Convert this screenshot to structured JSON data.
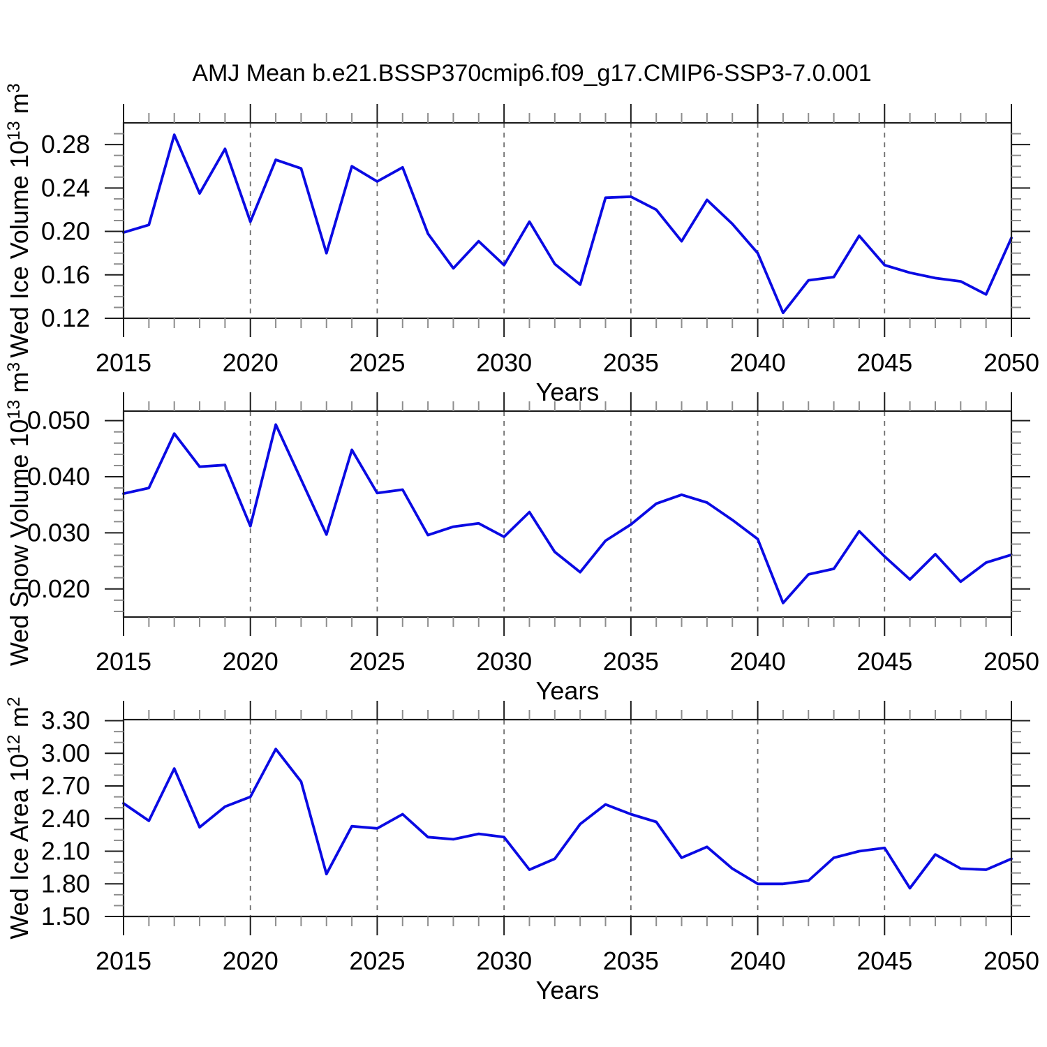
{
  "title": "AMJ Mean b.e21.BSSP370cmip6.f09_g17.CMIP6-SSP3-7.0.001",
  "colors": {
    "line": "#0a0ae3",
    "frame": "#1c1c1c",
    "major_tick": "#1c1c1c",
    "minor_tick": "#8d8d8d",
    "grid": "#6e6e6e",
    "text": "#000000",
    "background": "#ffffff"
  },
  "x_axis": {
    "label": "Years",
    "xlim": [
      2015,
      2050
    ],
    "major_ticks": [
      {
        "v": 2015,
        "label": "2015"
      },
      {
        "v": 2020,
        "label": "2020"
      },
      {
        "v": 2025,
        "label": "2025"
      },
      {
        "v": 2030,
        "label": "2030"
      },
      {
        "v": 2035,
        "label": "2035"
      },
      {
        "v": 2040,
        "label": "2040"
      },
      {
        "v": 2045,
        "label": "2045"
      },
      {
        "v": 2050,
        "label": "2050"
      }
    ],
    "minor_step": 1,
    "grid_years": [
      2020,
      2025,
      2030,
      2035,
      2040,
      2045
    ]
  },
  "chart_data": [
    {
      "type": "line",
      "name": "wed-ice-volume",
      "xlabel": "Years",
      "ylabel": "Wed Ice Volume 10^13 m^3",
      "ylabel_parts": [
        {
          "text": "Wed Ice Volume 10",
          "sup": false
        },
        {
          "text": "13",
          "sup": true
        },
        {
          "text": " m",
          "sup": false
        },
        {
          "text": "3",
          "sup": true
        }
      ],
      "ylim": [
        0.12,
        0.3
      ],
      "yticks": [
        {
          "v": 0.12,
          "label": "0.12"
        },
        {
          "v": 0.16,
          "label": "0.16"
        },
        {
          "v": 0.2,
          "label": "0.20"
        },
        {
          "v": 0.24,
          "label": "0.24"
        },
        {
          "v": 0.28,
          "label": "0.28"
        }
      ],
      "yminor_step": 0.01,
      "x": [
        2015,
        2016,
        2017,
        2018,
        2019,
        2020,
        2021,
        2022,
        2023,
        2024,
        2025,
        2026,
        2027,
        2028,
        2029,
        2030,
        2031,
        2032,
        2033,
        2034,
        2035,
        2036,
        2037,
        2038,
        2039,
        2040,
        2041,
        2042,
        2043,
        2044,
        2045,
        2046,
        2047,
        2048,
        2049,
        2050
      ],
      "values": [
        0.199,
        0.206,
        0.289,
        0.235,
        0.276,
        0.209,
        0.266,
        0.258,
        0.18,
        0.26,
        0.246,
        0.259,
        0.198,
        0.166,
        0.191,
        0.169,
        0.209,
        0.17,
        0.151,
        0.231,
        0.232,
        0.22,
        0.191,
        0.229,
        0.207,
        0.18,
        0.125,
        0.155,
        0.158,
        0.196,
        0.169,
        0.162,
        0.157,
        0.154,
        0.142,
        0.194
      ]
    },
    {
      "type": "line",
      "name": "wed-snow-volume",
      "xlabel": "Years",
      "ylabel": "Wed Snow Volume 10^13 m^3",
      "ylabel_parts": [
        {
          "text": "Wed Snow Volume 10",
          "sup": false
        },
        {
          "text": "13",
          "sup": true
        },
        {
          "text": " m",
          "sup": false
        },
        {
          "text": "3",
          "sup": true
        }
      ],
      "ylim": [
        0.015,
        0.0517
      ],
      "yticks": [
        {
          "v": 0.02,
          "label": "0.020"
        },
        {
          "v": 0.03,
          "label": "0.030"
        },
        {
          "v": 0.04,
          "label": "0.040"
        },
        {
          "v": 0.05,
          "label": "0.050"
        }
      ],
      "yminor_step": 0.002,
      "x": [
        2015,
        2016,
        2017,
        2018,
        2019,
        2020,
        2021,
        2022,
        2023,
        2024,
        2025,
        2026,
        2027,
        2028,
        2029,
        2030,
        2031,
        2032,
        2033,
        2034,
        2035,
        2036,
        2037,
        2038,
        2039,
        2040,
        2041,
        2042,
        2043,
        2044,
        2045,
        2046,
        2047,
        2048,
        2049,
        2050
      ],
      "values": [
        0.037,
        0.038,
        0.0477,
        0.0418,
        0.0421,
        0.0312,
        0.0493,
        0.0395,
        0.0297,
        0.0448,
        0.0371,
        0.0377,
        0.0296,
        0.0311,
        0.0317,
        0.0293,
        0.0337,
        0.0266,
        0.023,
        0.0286,
        0.0315,
        0.0352,
        0.0368,
        0.0354,
        0.0323,
        0.0289,
        0.0175,
        0.0226,
        0.0236,
        0.0303,
        0.0258,
        0.0217,
        0.0262,
        0.0213,
        0.0247,
        0.0261
      ]
    },
    {
      "type": "line",
      "name": "wed-ice-area",
      "xlabel": "Years",
      "ylabel": "Wed Ice Area 10^12 m^2",
      "ylabel_parts": [
        {
          "text": "Wed Ice Area 10",
          "sup": false
        },
        {
          "text": "12",
          "sup": true
        },
        {
          "text": " m",
          "sup": false
        },
        {
          "text": "2",
          "sup": true
        }
      ],
      "ylim": [
        1.5,
        3.31
      ],
      "yticks": [
        {
          "v": 1.5,
          "label": "1.50"
        },
        {
          "v": 1.8,
          "label": "1.80"
        },
        {
          "v": 2.1,
          "label": "2.10"
        },
        {
          "v": 2.4,
          "label": "2.40"
        },
        {
          "v": 2.7,
          "label": "2.70"
        },
        {
          "v": 3.0,
          "label": "3.00"
        },
        {
          "v": 3.3,
          "label": "3.30"
        }
      ],
      "yminor_step": 0.1,
      "x": [
        2015,
        2016,
        2017,
        2018,
        2019,
        2020,
        2021,
        2022,
        2023,
        2024,
        2025,
        2026,
        2027,
        2028,
        2029,
        2030,
        2031,
        2032,
        2033,
        2034,
        2035,
        2036,
        2037,
        2038,
        2039,
        2040,
        2041,
        2042,
        2043,
        2044,
        2045,
        2046,
        2047,
        2048,
        2049,
        2050
      ],
      "values": [
        2.54,
        2.38,
        2.86,
        2.32,
        2.51,
        2.6,
        3.04,
        2.74,
        1.89,
        2.33,
        2.31,
        2.44,
        2.23,
        2.21,
        2.26,
        2.23,
        1.93,
        2.03,
        2.35,
        2.53,
        2.44,
        2.37,
        2.04,
        2.14,
        1.94,
        1.8,
        1.8,
        1.83,
        2.04,
        2.1,
        2.13,
        1.76,
        2.07,
        1.94,
        1.93,
        2.03
      ]
    }
  ]
}
